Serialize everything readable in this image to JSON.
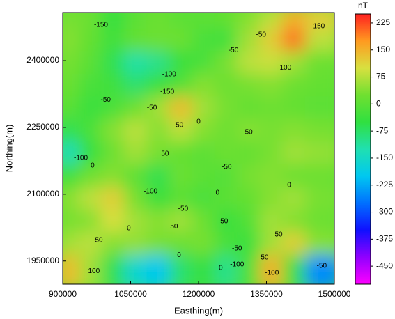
{
  "chart_data": {
    "type": "contour",
    "xlabel": "Easthing(m)",
    "ylabel": "Northing(m)",
    "colorbar_label": "nT",
    "xlim": [
      900000,
      1500000
    ],
    "xticks": [
      900000,
      1050000,
      1200000,
      1350000,
      1500000
    ],
    "ylim": [
      1898000,
      2508000
    ],
    "yticks": [
      1950000,
      2100000,
      2250000,
      2400000
    ],
    "zlim": [
      -500,
      250
    ],
    "zticks": [
      225,
      150,
      75,
      0,
      -75,
      -150,
      -225,
      -300,
      -375,
      -450
    ],
    "colorscale": [
      "#ff00ff",
      "#9000ff",
      "#1010ff",
      "#0070ff",
      "#00c8f0",
      "#20e0b0",
      "#30e040",
      "#70e030",
      "#d8e040",
      "#ff9a20",
      "#ff2020"
    ],
    "z": [
      [
        30,
        20,
        -50,
        0,
        20,
        0,
        0,
        10,
        40,
        80,
        150,
        120
      ],
      [
        40,
        10,
        -30,
        10,
        20,
        20,
        -20,
        -30,
        60,
        120,
        200,
        80
      ],
      [
        30,
        0,
        -60,
        -120,
        -100,
        -40,
        -20,
        30,
        80,
        90,
        60,
        20
      ],
      [
        20,
        -20,
        -30,
        -80,
        -40,
        -10,
        40,
        20,
        30,
        40,
        20,
        10
      ],
      [
        0,
        -40,
        -20,
        20,
        60,
        140,
        60,
        30,
        10,
        20,
        10,
        0
      ],
      [
        -60,
        -20,
        40,
        80,
        40,
        80,
        40,
        20,
        40,
        30,
        40,
        30
      ],
      [
        -140,
        -50,
        20,
        60,
        30,
        10,
        0,
        20,
        10,
        30,
        60,
        50
      ],
      [
        -40,
        20,
        40,
        0,
        -60,
        20,
        0,
        -10,
        30,
        40,
        20,
        20
      ],
      [
        40,
        80,
        120,
        30,
        -40,
        0,
        -20,
        0,
        10,
        40,
        60,
        30
      ],
      [
        30,
        40,
        100,
        60,
        40,
        60,
        20,
        -40,
        -10,
        60,
        40,
        20
      ],
      [
        60,
        80,
        40,
        50,
        30,
        20,
        30,
        -20,
        -40,
        60,
        120,
        40
      ],
      [
        140,
        60,
        -60,
        -160,
        -200,
        -80,
        -40,
        -100,
        -20,
        150,
        -40,
        -250
      ]
    ],
    "contour_labels": [
      {
        "level": -150,
        "x": 984600,
        "y": 2480000
      },
      {
        "level": -50,
        "x": 1338000,
        "y": 2458000
      },
      {
        "level": 150,
        "x": 1466000,
        "y": 2477000
      },
      {
        "level": -50,
        "x": 1277000,
        "y": 2423000
      },
      {
        "level": 100,
        "x": 1392000,
        "y": 2384000
      },
      {
        "level": -100,
        "x": 1135000,
        "y": 2369000
      },
      {
        "level": -150,
        "x": 1131000,
        "y": 2330000
      },
      {
        "level": -50,
        "x": 995000,
        "y": 2312000
      },
      {
        "level": -50,
        "x": 1097000,
        "y": 2294000
      },
      {
        "level": 0,
        "x": 1200000,
        "y": 2263000
      },
      {
        "level": 50,
        "x": 1158000,
        "y": 2255000
      },
      {
        "level": 50,
        "x": 1311000,
        "y": 2239000
      },
      {
        "level": 50,
        "x": 1126000,
        "y": 2191000
      },
      {
        "level": -50,
        "x": 1262000,
        "y": 2161000
      },
      {
        "level": -100,
        "x": 940000,
        "y": 2181000
      },
      {
        "level": 0,
        "x": 966000,
        "y": 2164000
      },
      {
        "level": 0,
        "x": 1400000,
        "y": 2120000
      },
      {
        "level": -100,
        "x": 1094000,
        "y": 2106000
      },
      {
        "level": 0,
        "x": 1242000,
        "y": 2103000
      },
      {
        "level": -50,
        "x": 1166000,
        "y": 2067000
      },
      {
        "level": 0,
        "x": 1046000,
        "y": 2023000
      },
      {
        "level": 50,
        "x": 1146000,
        "y": 2027000
      },
      {
        "level": -50,
        "x": 1254000,
        "y": 2039000
      },
      {
        "level": 50,
        "x": 1377000,
        "y": 2009000
      },
      {
        "level": 50,
        "x": 980000,
        "y": 1997000
      },
      {
        "level": -50,
        "x": 1285000,
        "y": 1978000
      },
      {
        "level": -100,
        "x": 1285000,
        "y": 1942000
      },
      {
        "level": 50,
        "x": 1346000,
        "y": 1958000
      },
      {
        "level": 0,
        "x": 1249000,
        "y": 1934000
      },
      {
        "level": -100,
        "x": 1362000,
        "y": 1923000
      },
      {
        "level": -50,
        "x": 1472000,
        "y": 1939000
      },
      {
        "level": 100,
        "x": 969000,
        "y": 1927000
      },
      {
        "level": 0,
        "x": 1157000,
        "y": 1963000
      }
    ]
  }
}
